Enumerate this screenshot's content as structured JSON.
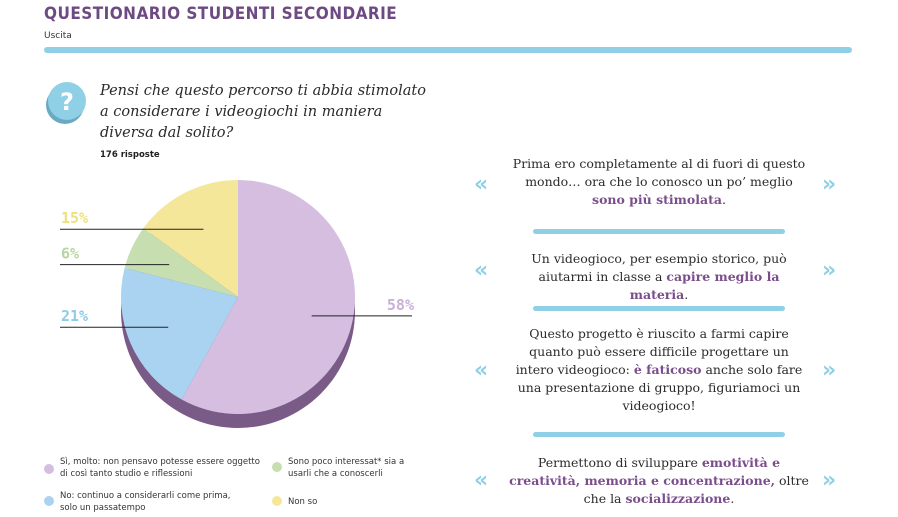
{
  "header": {
    "title": "QUESTIONARIO STUDENTI SECONDARIE",
    "subtitle": "Uscita"
  },
  "question": {
    "icon": "question-mark-icon",
    "symbol": "?",
    "text": "Pensi che questo percorso ti abbia stimolato a considerare i videogiochi in maniera diversa dal solito?",
    "responses": "176 risposte"
  },
  "chart_data": {
    "type": "pie",
    "categories": [
      "Sì, molto: non pensavo potesse essere oggetto di così tanto studio e riflessioni",
      "No: continuo a considerarli come prima, solo un passatempo",
      "Sono poco interessat* sia a usarli che a conoscerli",
      "Non so"
    ],
    "values": [
      58,
      21,
      6,
      15
    ],
    "value_labels": [
      "58%",
      "21%",
      "6%",
      "15%"
    ],
    "colors": [
      "#d5bedf",
      "#a9d3f0",
      "#c7dfb0",
      "#f4e79a"
    ],
    "shadow_color": "#7a5a86",
    "label_colors": [
      "#c8b1d6",
      "#8fcbe6",
      "#b7d5a0",
      "#efe07f"
    ],
    "legend_placement": "bottom"
  },
  "legend": [
    {
      "text": "Sì, molto: non pensavo potesse essere oggetto di così tanto studio e riflessioni"
    },
    {
      "text": "No: continuo a considerarli come prima, solo un passatempo"
    },
    {
      "text": "Sono poco interessat* sia a usarli che a conoscerli"
    },
    {
      "text": "Non so"
    }
  ],
  "quotes": [
    {
      "parts": [
        {
          "t": "Prima ero completamente al di fuori di questo mondo… ora che lo conosco un po’ meglio ",
          "hl": false
        },
        {
          "t": "sono più stimolata",
          "hl": true
        },
        {
          "t": ".",
          "hl": false
        }
      ]
    },
    {
      "parts": [
        {
          "t": "Un videogioco, per esempio storico, può aiutarmi in classe a ",
          "hl": false
        },
        {
          "t": "capire meglio la materia",
          "hl": true
        },
        {
          "t": ".",
          "hl": false
        }
      ]
    },
    {
      "parts": [
        {
          "t": "Questo progetto è riuscito a farmi capire quanto può essere difficile progettare un intero videogioco: ",
          "hl": false
        },
        {
          "t": "è faticoso",
          "hl": true
        },
        {
          "t": " anche solo fare una presentazione di gruppo, figuriamoci un videogioco!",
          "hl": false
        }
      ]
    },
    {
      "parts": [
        {
          "t": "Permettono di sviluppare ",
          "hl": false
        },
        {
          "t": "emotività e creatività, memoria e concentrazione,",
          "hl": true
        },
        {
          "t": " oltre che la ",
          "hl": false
        },
        {
          "t": "socializzazione",
          "hl": true
        },
        {
          "t": ".",
          "hl": false
        }
      ]
    }
  ],
  "quote_marks": {
    "open": "«",
    "close": "»"
  },
  "colors": {
    "accent_blue": "#8fd0e6",
    "accent_purple": "#7a4d8b",
    "title": "#6e4a82"
  }
}
